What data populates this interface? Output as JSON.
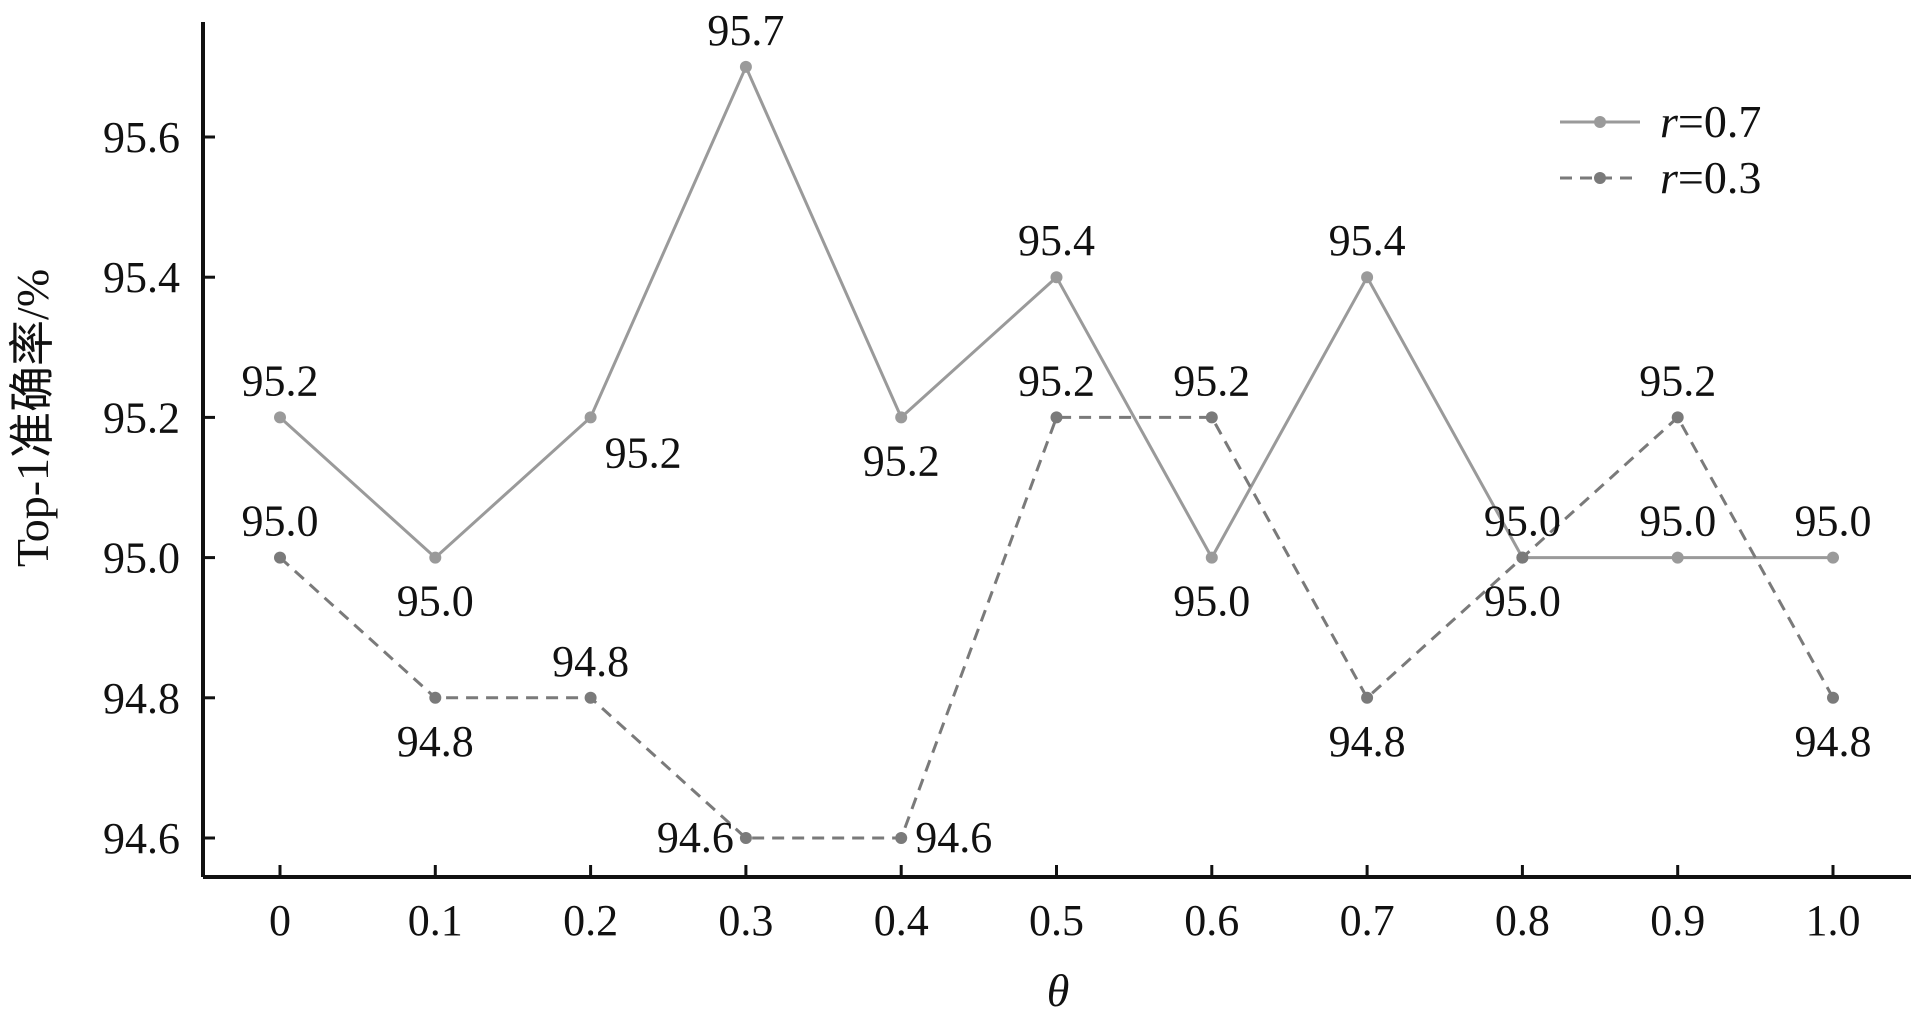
{
  "chart_data": {
    "type": "line",
    "title": "",
    "xlabel": "θ",
    "ylabel": "Top-1准确率/%",
    "x": [
      0,
      0.1,
      0.2,
      0.3,
      0.4,
      0.5,
      0.6,
      0.7,
      0.8,
      0.9,
      1.0
    ],
    "x_tick_labels": [
      "0",
      "0.1",
      "0.2",
      "0.3",
      "0.4",
      "0.5",
      "0.6",
      "0.7",
      "0.8",
      "0.9",
      "1.0"
    ],
    "y_ticks": [
      94.6,
      94.8,
      95.0,
      95.2,
      95.4,
      95.6
    ],
    "y_tick_labels": [
      "94.6",
      "94.8",
      "95.0",
      "95.2",
      "95.4",
      "95.6"
    ],
    "ylim": [
      94.55,
      95.77
    ],
    "grid": false,
    "legend_position": "top-right",
    "series": [
      {
        "name": "r=0.7",
        "legend_var": "r",
        "legend_value": "=0.7",
        "style": "solid",
        "color": "#9a9a9a",
        "values": [
          95.2,
          95.0,
          95.2,
          95.7,
          95.2,
          95.4,
          95.0,
          95.4,
          95.0,
          95.0,
          95.0
        ],
        "value_labels": [
          "95.2",
          "95.0",
          "95.2",
          "95.7",
          "95.2",
          "95.4",
          "95.0",
          "95.4",
          "95.0",
          "95.0",
          "95.0"
        ],
        "label_side": [
          "above",
          "below",
          "below-right",
          "above",
          "below",
          "above",
          "below",
          "above",
          "below",
          "above",
          "above"
        ]
      },
      {
        "name": "r=0.3",
        "legend_var": "r",
        "legend_value": "=0.3",
        "style": "dashed",
        "color": "#7a7a7a",
        "values": [
          95.0,
          94.8,
          94.8,
          94.6,
          94.6,
          95.2,
          95.2,
          94.8,
          95.0,
          95.2,
          94.8
        ],
        "value_labels": [
          "95.0",
          "94.8",
          "94.8",
          "94.6",
          "94.6",
          "95.2",
          "95.2",
          "94.8",
          "95.0",
          "95.2",
          "94.8"
        ],
        "label_side": [
          "above",
          "below",
          "above",
          "left",
          "right",
          "above",
          "above",
          "below",
          "above",
          "above",
          "below"
        ]
      }
    ]
  }
}
